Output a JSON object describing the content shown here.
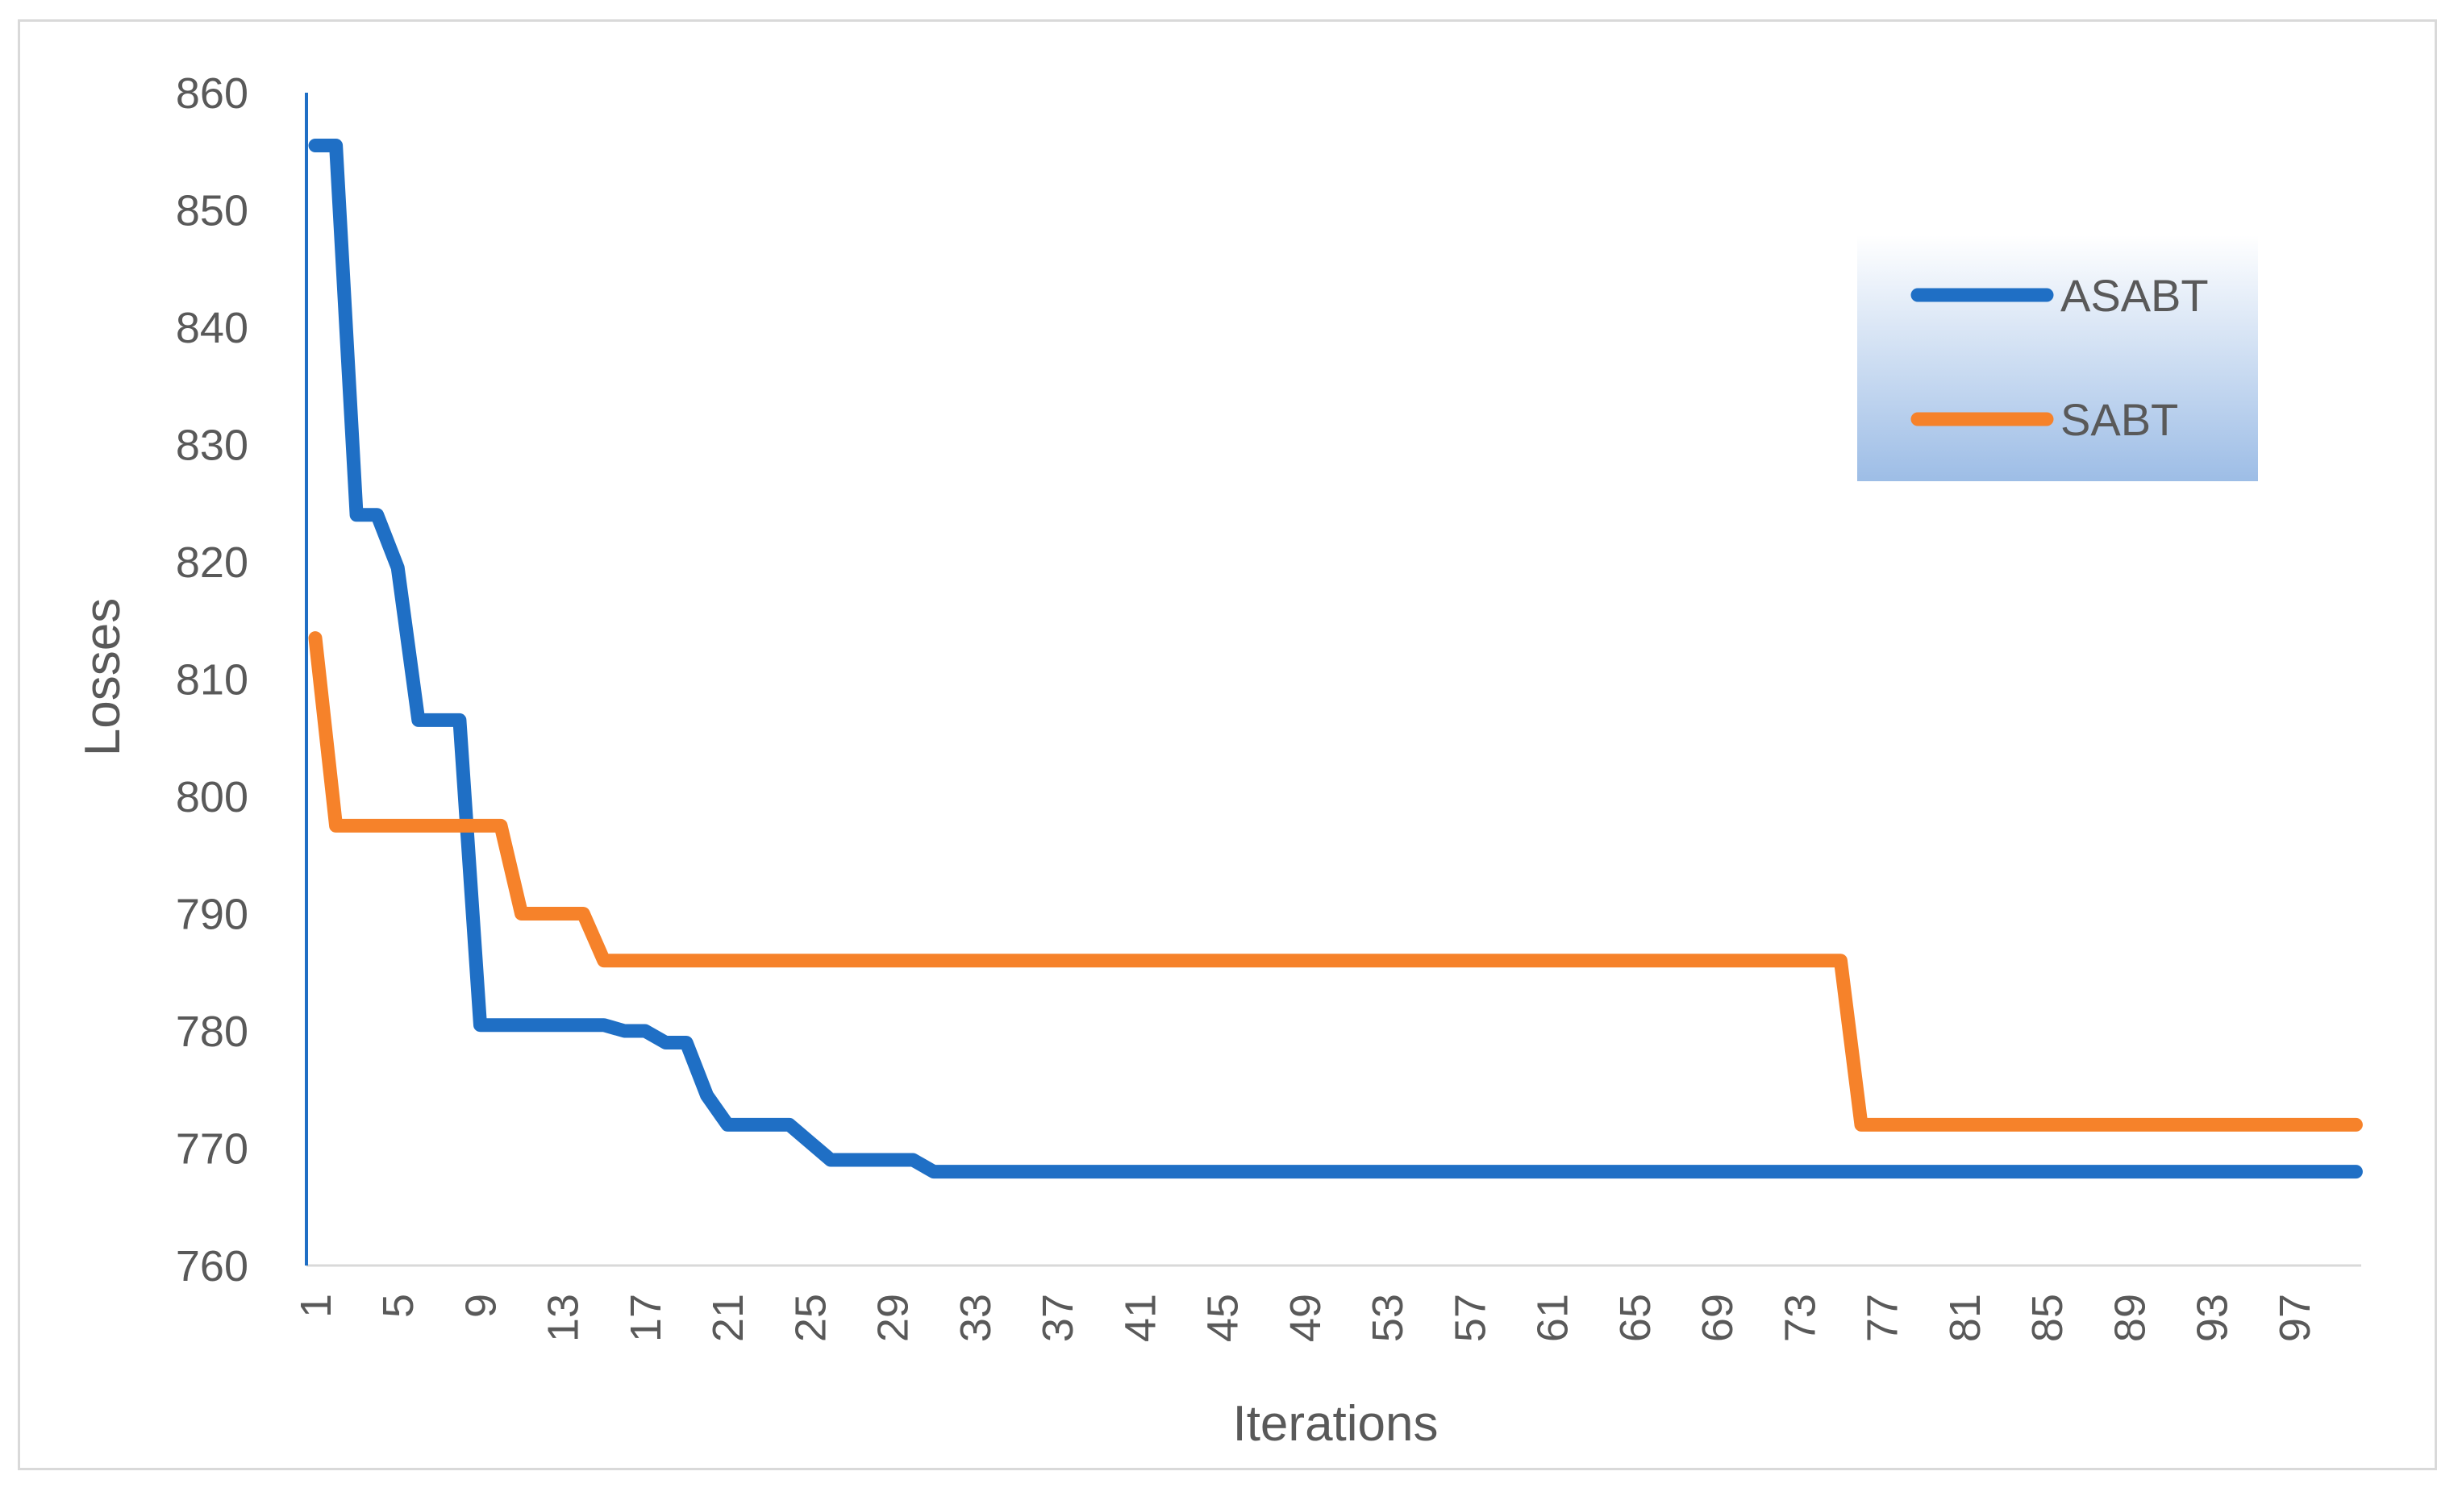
{
  "chart_data": {
    "type": "line",
    "xlabel": "Iterations",
    "ylabel": "Losses",
    "ylim": [
      760,
      860
    ],
    "yticks": [
      760,
      770,
      780,
      790,
      800,
      810,
      820,
      830,
      840,
      850,
      860
    ],
    "xrange": [
      1,
      100
    ],
    "xticks": [
      1,
      5,
      9,
      13,
      17,
      21,
      25,
      29,
      33,
      37,
      41,
      45,
      49,
      53,
      57,
      61,
      65,
      69,
      73,
      77,
      81,
      85,
      89,
      93,
      97
    ],
    "legend_position": "top-right",
    "grid": false,
    "series": [
      {
        "name": "ASABT",
        "color": "#1f6fc5",
        "points": [
          [
            1,
            855.5
          ],
          [
            2,
            855.5
          ],
          [
            3,
            824
          ],
          [
            4,
            824
          ],
          [
            5,
            819.5
          ],
          [
            6,
            806.5
          ],
          [
            7,
            806.5
          ],
          [
            8,
            806.5
          ],
          [
            9,
            780.5
          ],
          [
            10,
            780.5
          ],
          [
            11,
            780.5
          ],
          [
            12,
            780.5
          ],
          [
            13,
            780.5
          ],
          [
            14,
            780.5
          ],
          [
            15,
            780.5
          ],
          [
            16,
            780
          ],
          [
            17,
            780
          ],
          [
            18,
            779
          ],
          [
            19,
            779
          ],
          [
            20,
            774.5
          ],
          [
            21,
            772
          ],
          [
            22,
            772
          ],
          [
            23,
            772
          ],
          [
            24,
            772
          ],
          [
            25,
            770.5
          ],
          [
            26,
            769
          ],
          [
            27,
            769
          ],
          [
            28,
            769
          ],
          [
            29,
            769
          ],
          [
            30,
            769
          ],
          [
            31,
            768
          ],
          [
            100,
            768
          ]
        ]
      },
      {
        "name": "SABT",
        "color": "#f6822a",
        "points": [
          [
            1,
            813.5
          ],
          [
            2,
            797.5
          ],
          [
            9,
            797.5
          ],
          [
            10,
            797.5
          ],
          [
            11,
            790
          ],
          [
            12,
            790
          ],
          [
            13,
            790
          ],
          [
            14,
            790
          ],
          [
            15,
            786
          ],
          [
            75,
            786
          ],
          [
            76,
            772
          ],
          [
            100,
            772
          ]
        ]
      }
    ]
  }
}
